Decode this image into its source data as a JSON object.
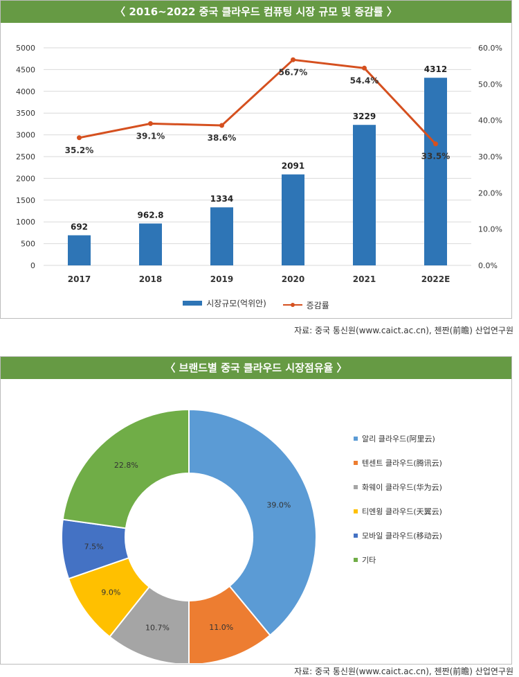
{
  "chart_data": [
    {
      "type": "bar+line",
      "title": "〈 2016~2022 중국 클라우드 컴퓨팅 시장 규모 및 증감률 〉",
      "categories": [
        "2017",
        "2018",
        "2019",
        "2020",
        "2021",
        "2022E"
      ],
      "series": [
        {
          "name": "시장규모(억위안)",
          "type": "bar",
          "color": "#2e75b6",
          "values": [
            692,
            962.8,
            1334,
            2091,
            3229,
            4312
          ],
          "labels": [
            "692",
            "962.8",
            "1334",
            "2091",
            "3229",
            "4312"
          ]
        },
        {
          "name": "증감률",
          "type": "line",
          "color": "#d5501f",
          "values": [
            35.2,
            39.1,
            38.6,
            56.7,
            54.4,
            33.5
          ],
          "labels": [
            "35.2%",
            "39.1%",
            "38.6%",
            "56.7%",
            "54.4%",
            "33.5%"
          ]
        }
      ],
      "y_left": {
        "ylim": [
          0,
          5000
        ],
        "ticks": [
          "0",
          "500",
          "1000",
          "1500",
          "2000",
          "2500",
          "3000",
          "3500",
          "4000",
          "4500",
          "5000"
        ]
      },
      "y_right": {
        "ylim": [
          0,
          60
        ],
        "ticks": [
          "0.0%",
          "10.0%",
          "20.0%",
          "30.0%",
          "40.0%",
          "50.0%",
          "60.0%"
        ]
      },
      "grid": true,
      "legend": "bottom",
      "source": "자료: 중국 통신원(www.caict.ac.cn), 첸짠(前瞻) 산업연구원"
    },
    {
      "type": "donut",
      "title": "〈 브랜드별 중국 클라우드 시장점유율 〉",
      "slices": [
        {
          "name": "알리 클라우드(阿里云)",
          "value": 39.0,
          "label": "39.0%",
          "color": "#5b9bd5"
        },
        {
          "name": "텐센트 클라우드(腾讯云)",
          "value": 11.0,
          "label": "11.0%",
          "color": "#ed7d31"
        },
        {
          "name": "화웨이 클라우드(华为云)",
          "value": 10.7,
          "label": "10.7%",
          "color": "#a5a5a5"
        },
        {
          "name": "티엔윙 클라우드(天翼云)",
          "value": 9.0,
          "label": "9.0%",
          "color": "#ffc000"
        },
        {
          "name": "모바일 클라우드(移动云)",
          "value": 7.5,
          "label": "7.5%",
          "color": "#4472c4"
        },
        {
          "name": "기타",
          "value": 22.8,
          "label": "22.8%",
          "color": "#70ad47"
        }
      ],
      "legend": "right",
      "source": "자료: 중국 통신원(www.caict.ac.cn), 첸짠(前瞻) 산업연구원"
    }
  ]
}
